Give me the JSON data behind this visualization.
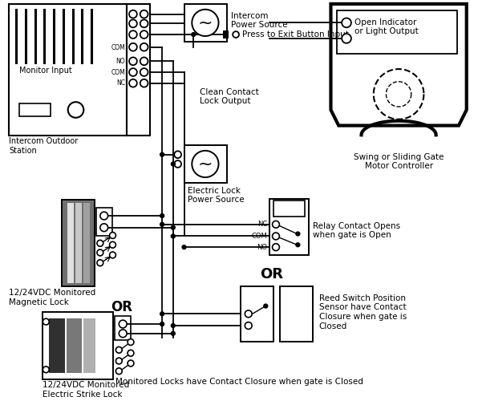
{
  "bg": "#ffffff",
  "labels": {
    "intercom_power": "Intercom\nPower Source",
    "press_exit": "Press to Exit Button Input",
    "monitor": "Monitor Input",
    "clean_contact": "Clean Contact\nLock Output",
    "outdoor_station": "Intercom Outdoor\nStation",
    "elec_lock_ps": "Electric Lock\nPower Source",
    "mag_lock": "12/24VDC Monitored\nMagnetic Lock",
    "elec_strike": "12/24VDC Monitored\nElectric Strike Lock",
    "or1": "OR",
    "or2": "OR",
    "relay": "Relay Contact Opens\nwhen gate is Open",
    "reed": "Reed Switch Position\nSensor have Contact\nClosure when gate is\nClosed",
    "swing_gate": "Swing or Sliding Gate\nMotor Controller",
    "open_ind": "Open Indicator\nor Light Output",
    "note": "Monitored Locks have Contact Closure when gate is Closed",
    "NC": "NC",
    "COM": "COM",
    "NO": "NO"
  },
  "colors": {
    "mag_dark": "#707070",
    "mag_mid": "#a0a0a0",
    "mag_light": "#c8c8c8",
    "mag_lighter": "#e0e0e0",
    "strike_dark": "#303030",
    "strike_mid": "#787878",
    "strike_light": "#b0b0b0"
  }
}
